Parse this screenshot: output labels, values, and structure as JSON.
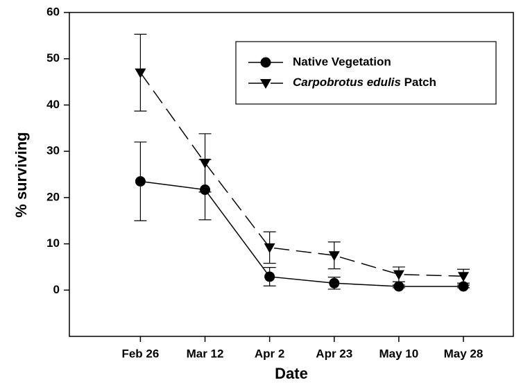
{
  "chart_data": {
    "type": "line",
    "xlabel": "Date",
    "ylabel": "% surviving",
    "categories": [
      "Feb 26",
      "Mar 12",
      "Apr 2",
      "Apr 23",
      "May 10",
      "May 28"
    ],
    "series": [
      {
        "name": "Native Vegetation",
        "color": "#000000",
        "marker": "circle",
        "dash": "solid",
        "values": [
          23.5,
          21.7,
          2.9,
          1.5,
          0.8,
          0.8
        ],
        "errors": [
          8.5,
          6.5,
          2.0,
          1.3,
          0.3,
          0.3
        ]
      },
      {
        "name": "Carpobrotus edulis Patch",
        "color": "#000000",
        "marker": "triangle-down",
        "dash": "dashed",
        "values": [
          47,
          27.5,
          9.2,
          7.5,
          3.4,
          3.0
        ],
        "errors": [
          8.3,
          6.3,
          3.4,
          2.9,
          1.6,
          1.5
        ]
      }
    ],
    "ylim": [
      -10,
      60
    ],
    "yticks": [
      0,
      10,
      20,
      30,
      40,
      50,
      60
    ],
    "legend": "upper right"
  }
}
